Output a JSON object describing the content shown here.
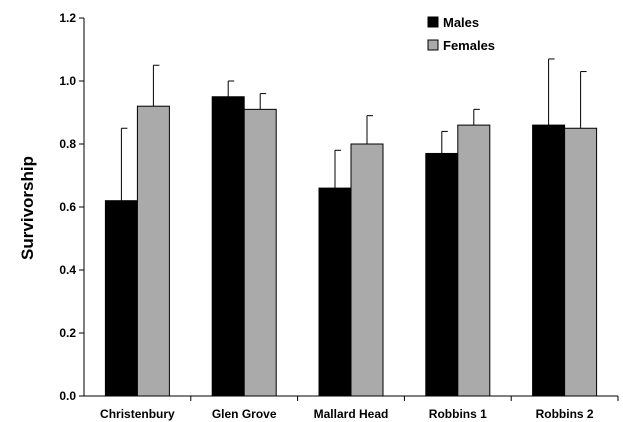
{
  "chart_data": {
    "type": "bar",
    "categories": [
      "Christenbury",
      "Glen Grove",
      "Mallard Head",
      "Robbins 1",
      "Robbins 2"
    ],
    "series": [
      {
        "name": "Males",
        "color": "#000000",
        "values": [
          0.62,
          0.95,
          0.66,
          0.77,
          0.86
        ],
        "errors": [
          0.23,
          0.05,
          0.12,
          0.07,
          0.21
        ]
      },
      {
        "name": "Females",
        "color": "#aaaaaa",
        "values": [
          0.92,
          0.91,
          0.8,
          0.86,
          0.85
        ],
        "errors": [
          0.13,
          0.05,
          0.09,
          0.05,
          0.18
        ]
      }
    ],
    "title": "",
    "xlabel": "",
    "ylabel": "Survivorship",
    "ylim": [
      0,
      1.2
    ],
    "yticks": [
      "0.0",
      "0.2",
      "0.4",
      "0.6",
      "0.8",
      "1.0",
      "1.2"
    ],
    "error_bars": "upper only",
    "grid": false,
    "legend_position": "top-right"
  }
}
